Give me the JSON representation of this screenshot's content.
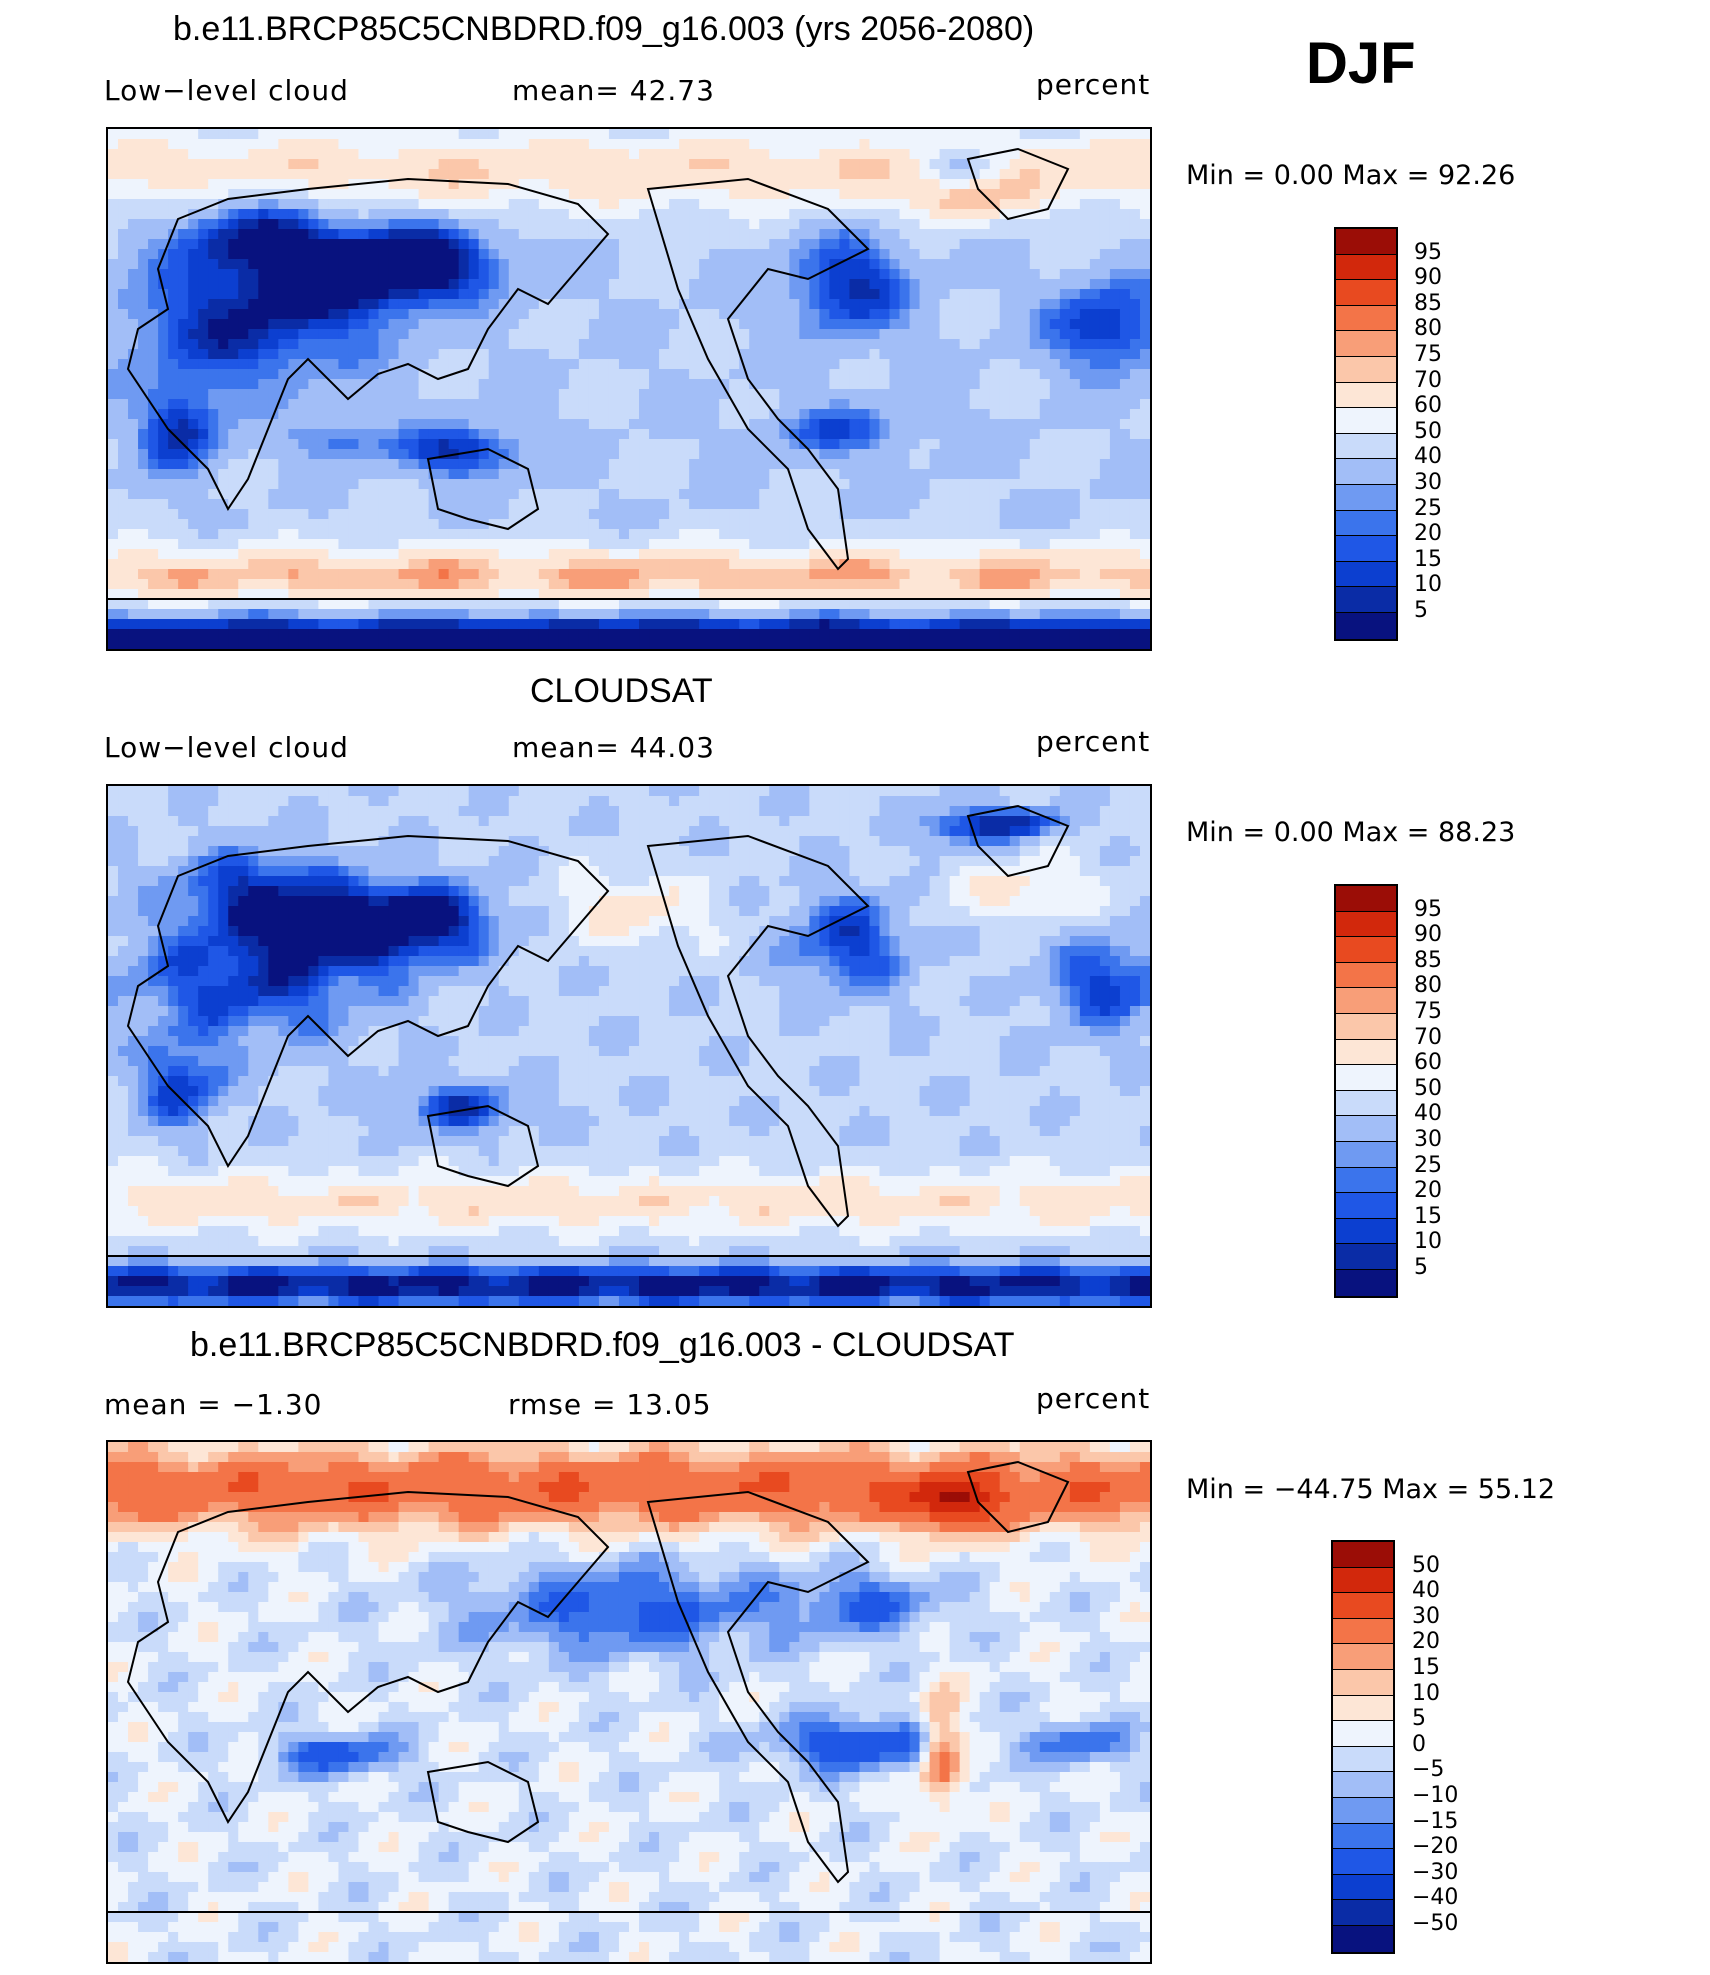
{
  "season": "DJF",
  "colors": {
    "abs_scale": [
      "#08127f",
      "#0a2ca6",
      "#0c3fd0",
      "#1f57e6",
      "#3b74ec",
      "#6f9af2",
      "#a2bef7",
      "#c9dbfa",
      "#eef4fd",
      "#fde6d6",
      "#fbc7aa",
      "#f89e78",
      "#f37448",
      "#e84a20",
      "#d2280c",
      "#9b0d06"
    ],
    "diff_scale": [
      "#08127f",
      "#0a2ca6",
      "#0c3fd0",
      "#1f57e6",
      "#3b74ec",
      "#6f9af2",
      "#a2bef7",
      "#c9dbfa",
      "#eef4fd",
      "#fde6d6",
      "#fbc7aa",
      "#f89e78",
      "#f37448",
      "#e84a20",
      "#d2280c",
      "#9b0d06"
    ],
    "land_outline": "#000000"
  },
  "panels": [
    {
      "title": "b.e11.BRCP85C5CNBDRD.f09_g16.003 (yrs 2056-2080)",
      "left_label": "Low−level cloud",
      "center_label": "mean=   42.73",
      "right_label": "percent",
      "minmax": "Min =    0.00  Max =   92.26",
      "colorbar_labels": [
        "95",
        "90",
        "85",
        "80",
        "75",
        "70",
        "60",
        "50",
        "40",
        "30",
        "25",
        "20",
        "15",
        "10",
        "5"
      ],
      "field": "model"
    },
    {
      "title": "CLOUDSAT",
      "left_label": "Low−level cloud",
      "center_label": "mean=   44.03",
      "right_label": "percent",
      "minmax": "Min =    0.00  Max =   88.23",
      "colorbar_labels": [
        "95",
        "90",
        "85",
        "80",
        "75",
        "70",
        "60",
        "50",
        "40",
        "30",
        "25",
        "20",
        "15",
        "10",
        "5"
      ],
      "field": "obs"
    },
    {
      "title": "b.e11.BRCP85C5CNBDRD.f09_g16.003 - CLOUDSAT",
      "left_label": "mean =   −1.30",
      "center_label": "rmse =   13.05",
      "right_label": "percent",
      "minmax": "Min = −44.75  Max =   55.12",
      "colorbar_labels": [
        "50",
        "40",
        "30",
        "20",
        "15",
        "10",
        "5",
        "0",
        "−5",
        "−10",
        "−15",
        "−20",
        "−30",
        "−40",
        "−50"
      ],
      "field": "diff"
    }
  ]
}
